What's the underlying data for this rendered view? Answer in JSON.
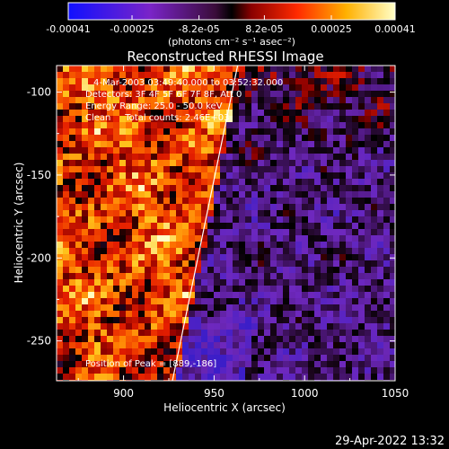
{
  "chart_data": {
    "type": "heatmap",
    "title": "Reconstructed RHESSI Image",
    "xlabel": "Heliocentric X (arcsec)",
    "ylabel": "Heliocentric Y (arcsec)",
    "xlim": [
      863,
      1050
    ],
    "ylim": [
      -274,
      -84
    ],
    "x_ticks": [
      900,
      950,
      1000,
      1050
    ],
    "y_ticks": [
      -100,
      -150,
      -200,
      -250
    ],
    "colorbar": {
      "ticks": [
        "-0.00041",
        "-0.00025",
        "-8.2e-05",
        "8.2e-05",
        "0.00025",
        "0.00041"
      ],
      "tick_values": [
        -0.00041,
        -0.00025,
        -8.2e-05,
        8.2e-05,
        0.00025,
        0.00041
      ],
      "range": [
        -0.00041,
        0.00041
      ],
      "unit": "(photons cm⁻² s⁻¹ asec⁻²)"
    },
    "annotations": [
      "4-Mar-2003 03:49:40.000 to 03:52:32.000",
      "Detectors: 3F 4F 5F 6F 7F 8F, Att 0",
      "Energy Range: 25.0 - 50.0 keV",
      "Clean     Total counts: 2.46E+03",
      "Position of Peak = [889,-186]"
    ],
    "limb_line": [
      [
        963,
        -84
      ],
      [
        927,
        -274
      ]
    ],
    "grid": false
  },
  "timestamp": "29-Apr-2022 13:32"
}
